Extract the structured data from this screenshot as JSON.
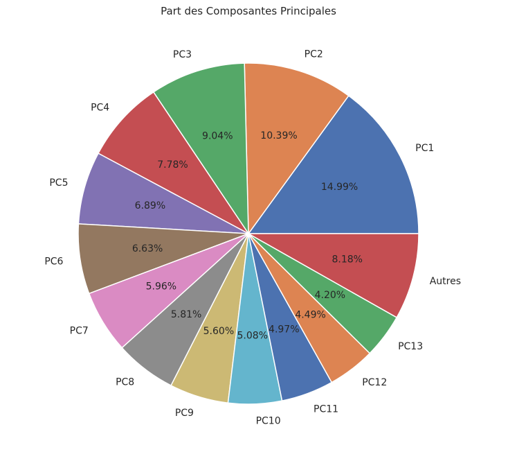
{
  "chart_data": {
    "type": "pie",
    "title": "Part des Composantes Principales",
    "categories": [
      "PC1",
      "PC2",
      "PC3",
      "PC4",
      "PC5",
      "PC6",
      "PC7",
      "PC8",
      "PC9",
      "PC10",
      "PC11",
      "PC12",
      "PC13",
      "Autres"
    ],
    "values": [
      14.99,
      10.39,
      9.04,
      7.78,
      6.89,
      6.63,
      5.96,
      5.81,
      5.6,
      5.08,
      4.97,
      4.49,
      4.2,
      8.18
    ],
    "percent_labels": [
      "14.99%",
      "10.39%",
      "9.04%",
      "7.78%",
      "6.89%",
      "6.63%",
      "5.96%",
      "5.81%",
      "5.60%",
      "5.08%",
      "4.97%",
      "4.49%",
      "4.20%",
      "8.18%"
    ],
    "colors": [
      "#4c72b0",
      "#dd8452",
      "#55a868",
      "#c44e52",
      "#8172b3",
      "#937860",
      "#da8bc3",
      "#8c8c8c",
      "#ccb974",
      "#64b5cd",
      "#4c72b0",
      "#dd8452",
      "#55a868",
      "#c44e52"
    ],
    "start_angle_deg": 0,
    "direction": "counterclockwise"
  }
}
